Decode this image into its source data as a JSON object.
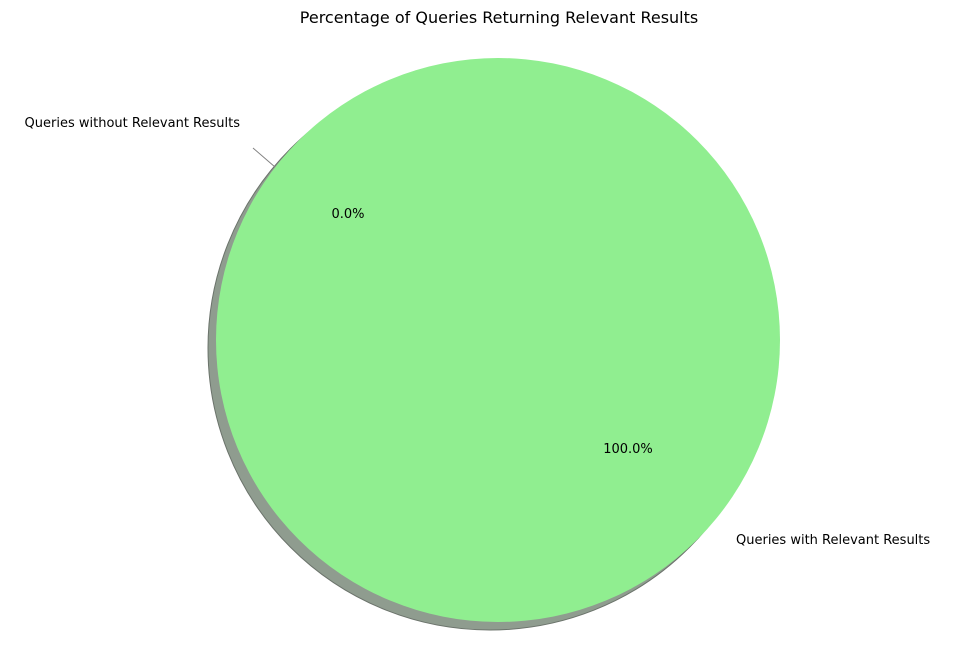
{
  "chart_data": {
    "type": "pie",
    "title": "Percentage of Queries Returning Relevant Results",
    "slices": [
      {
        "label": "Queries with Relevant Results",
        "value": 100.0,
        "pct_label": "100.0%",
        "color": "#90ee90"
      },
      {
        "label": "Queries without Relevant Results",
        "value": 0.0,
        "pct_label": "0.0%",
        "color": "#ffcccb"
      }
    ],
    "shadow": true,
    "legend": false
  }
}
